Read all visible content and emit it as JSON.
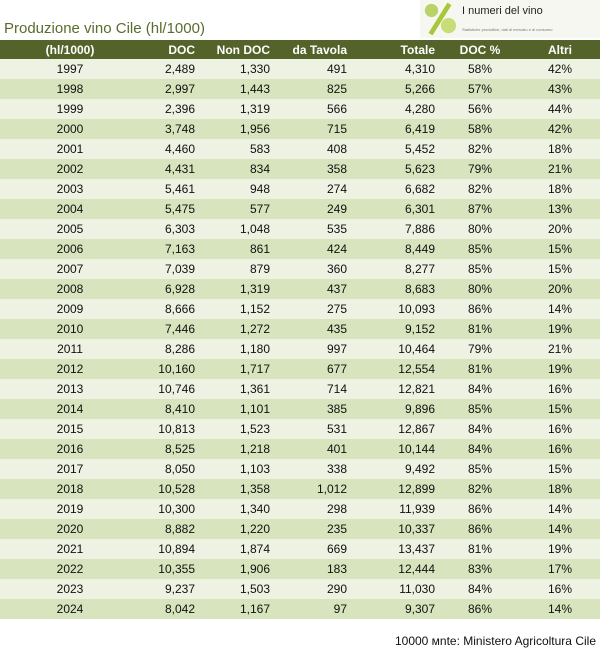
{
  "title": "Produzione vino Cile (hl/1000)",
  "logo": {
    "text": "I numeri del vino",
    "subtitle": "Statistiche produttive, dati di mercato e di consumo"
  },
  "table": {
    "headers": [
      "(hl/1000)",
      "DOC",
      "Non DOC",
      "da Tavola",
      "Totale",
      "DOC %",
      "Altri"
    ],
    "rows": [
      [
        "1997",
        "2,489",
        "1,330",
        "491",
        "4,310",
        "58%",
        "42%"
      ],
      [
        "1998",
        "2,997",
        "1,443",
        "825",
        "5,266",
        "57%",
        "43%"
      ],
      [
        "1999",
        "2,396",
        "1,319",
        "566",
        "4,280",
        "56%",
        "44%"
      ],
      [
        "2000",
        "3,748",
        "1,956",
        "715",
        "6,419",
        "58%",
        "42%"
      ],
      [
        "2001",
        "4,460",
        "583",
        "408",
        "5,452",
        "82%",
        "18%"
      ],
      [
        "2002",
        "4,431",
        "834",
        "358",
        "5,623",
        "79%",
        "21%"
      ],
      [
        "2003",
        "5,461",
        "948",
        "274",
        "6,682",
        "82%",
        "18%"
      ],
      [
        "2004",
        "5,475",
        "577",
        "249",
        "6,301",
        "87%",
        "13%"
      ],
      [
        "2005",
        "6,303",
        "1,048",
        "535",
        "7,886",
        "80%",
        "20%"
      ],
      [
        "2006",
        "7,163",
        "861",
        "424",
        "8,449",
        "85%",
        "15%"
      ],
      [
        "2007",
        "7,039",
        "879",
        "360",
        "8,277",
        "85%",
        "15%"
      ],
      [
        "2008",
        "6,928",
        "1,319",
        "437",
        "8,683",
        "80%",
        "20%"
      ],
      [
        "2009",
        "8,666",
        "1,152",
        "275",
        "10,093",
        "86%",
        "14%"
      ],
      [
        "2010",
        "7,446",
        "1,272",
        "435",
        "9,152",
        "81%",
        "19%"
      ],
      [
        "2011",
        "8,286",
        "1,180",
        "997",
        "10,464",
        "79%",
        "21%"
      ],
      [
        "2012",
        "10,160",
        "1,717",
        "677",
        "12,554",
        "81%",
        "19%"
      ],
      [
        "2013",
        "10,746",
        "1,361",
        "714",
        "12,821",
        "84%",
        "16%"
      ],
      [
        "2014",
        "8,410",
        "1,101",
        "385",
        "9,896",
        "85%",
        "15%"
      ],
      [
        "2015",
        "10,813",
        "1,523",
        "531",
        "12,867",
        "84%",
        "16%"
      ],
      [
        "2016",
        "8,525",
        "1,218",
        "401",
        "10,144",
        "84%",
        "16%"
      ],
      [
        "2017",
        "8,050",
        "1,103",
        "338",
        "9,492",
        "85%",
        "15%"
      ],
      [
        "2018",
        "10,528",
        "1,358",
        "1,012",
        "12,899",
        "82%",
        "18%"
      ],
      [
        "2019",
        "10,300",
        "1,340",
        "298",
        "11,939",
        "86%",
        "14%"
      ],
      [
        "2020",
        "8,882",
        "1,220",
        "235",
        "10,337",
        "86%",
        "14%"
      ],
      [
        "2021",
        "10,894",
        "1,874",
        "669",
        "13,437",
        "81%",
        "19%"
      ],
      [
        "2022",
        "10,355",
        "1,906",
        "183",
        "12,444",
        "83%",
        "17%"
      ],
      [
        "2023",
        "9,237",
        "1,503",
        "290",
        "11,030",
        "84%",
        "16%"
      ],
      [
        "2024",
        "8,042",
        "1,167",
        "97",
        "9,307",
        "86%",
        "14%"
      ]
    ]
  },
  "source": "10000 ᴍnte: Ministero Agricoltura Cile",
  "colors": {
    "header": "#546329",
    "row_light": "#eef2e3",
    "row_dark": "#d8e4bd",
    "title": "#5a6b2e"
  }
}
